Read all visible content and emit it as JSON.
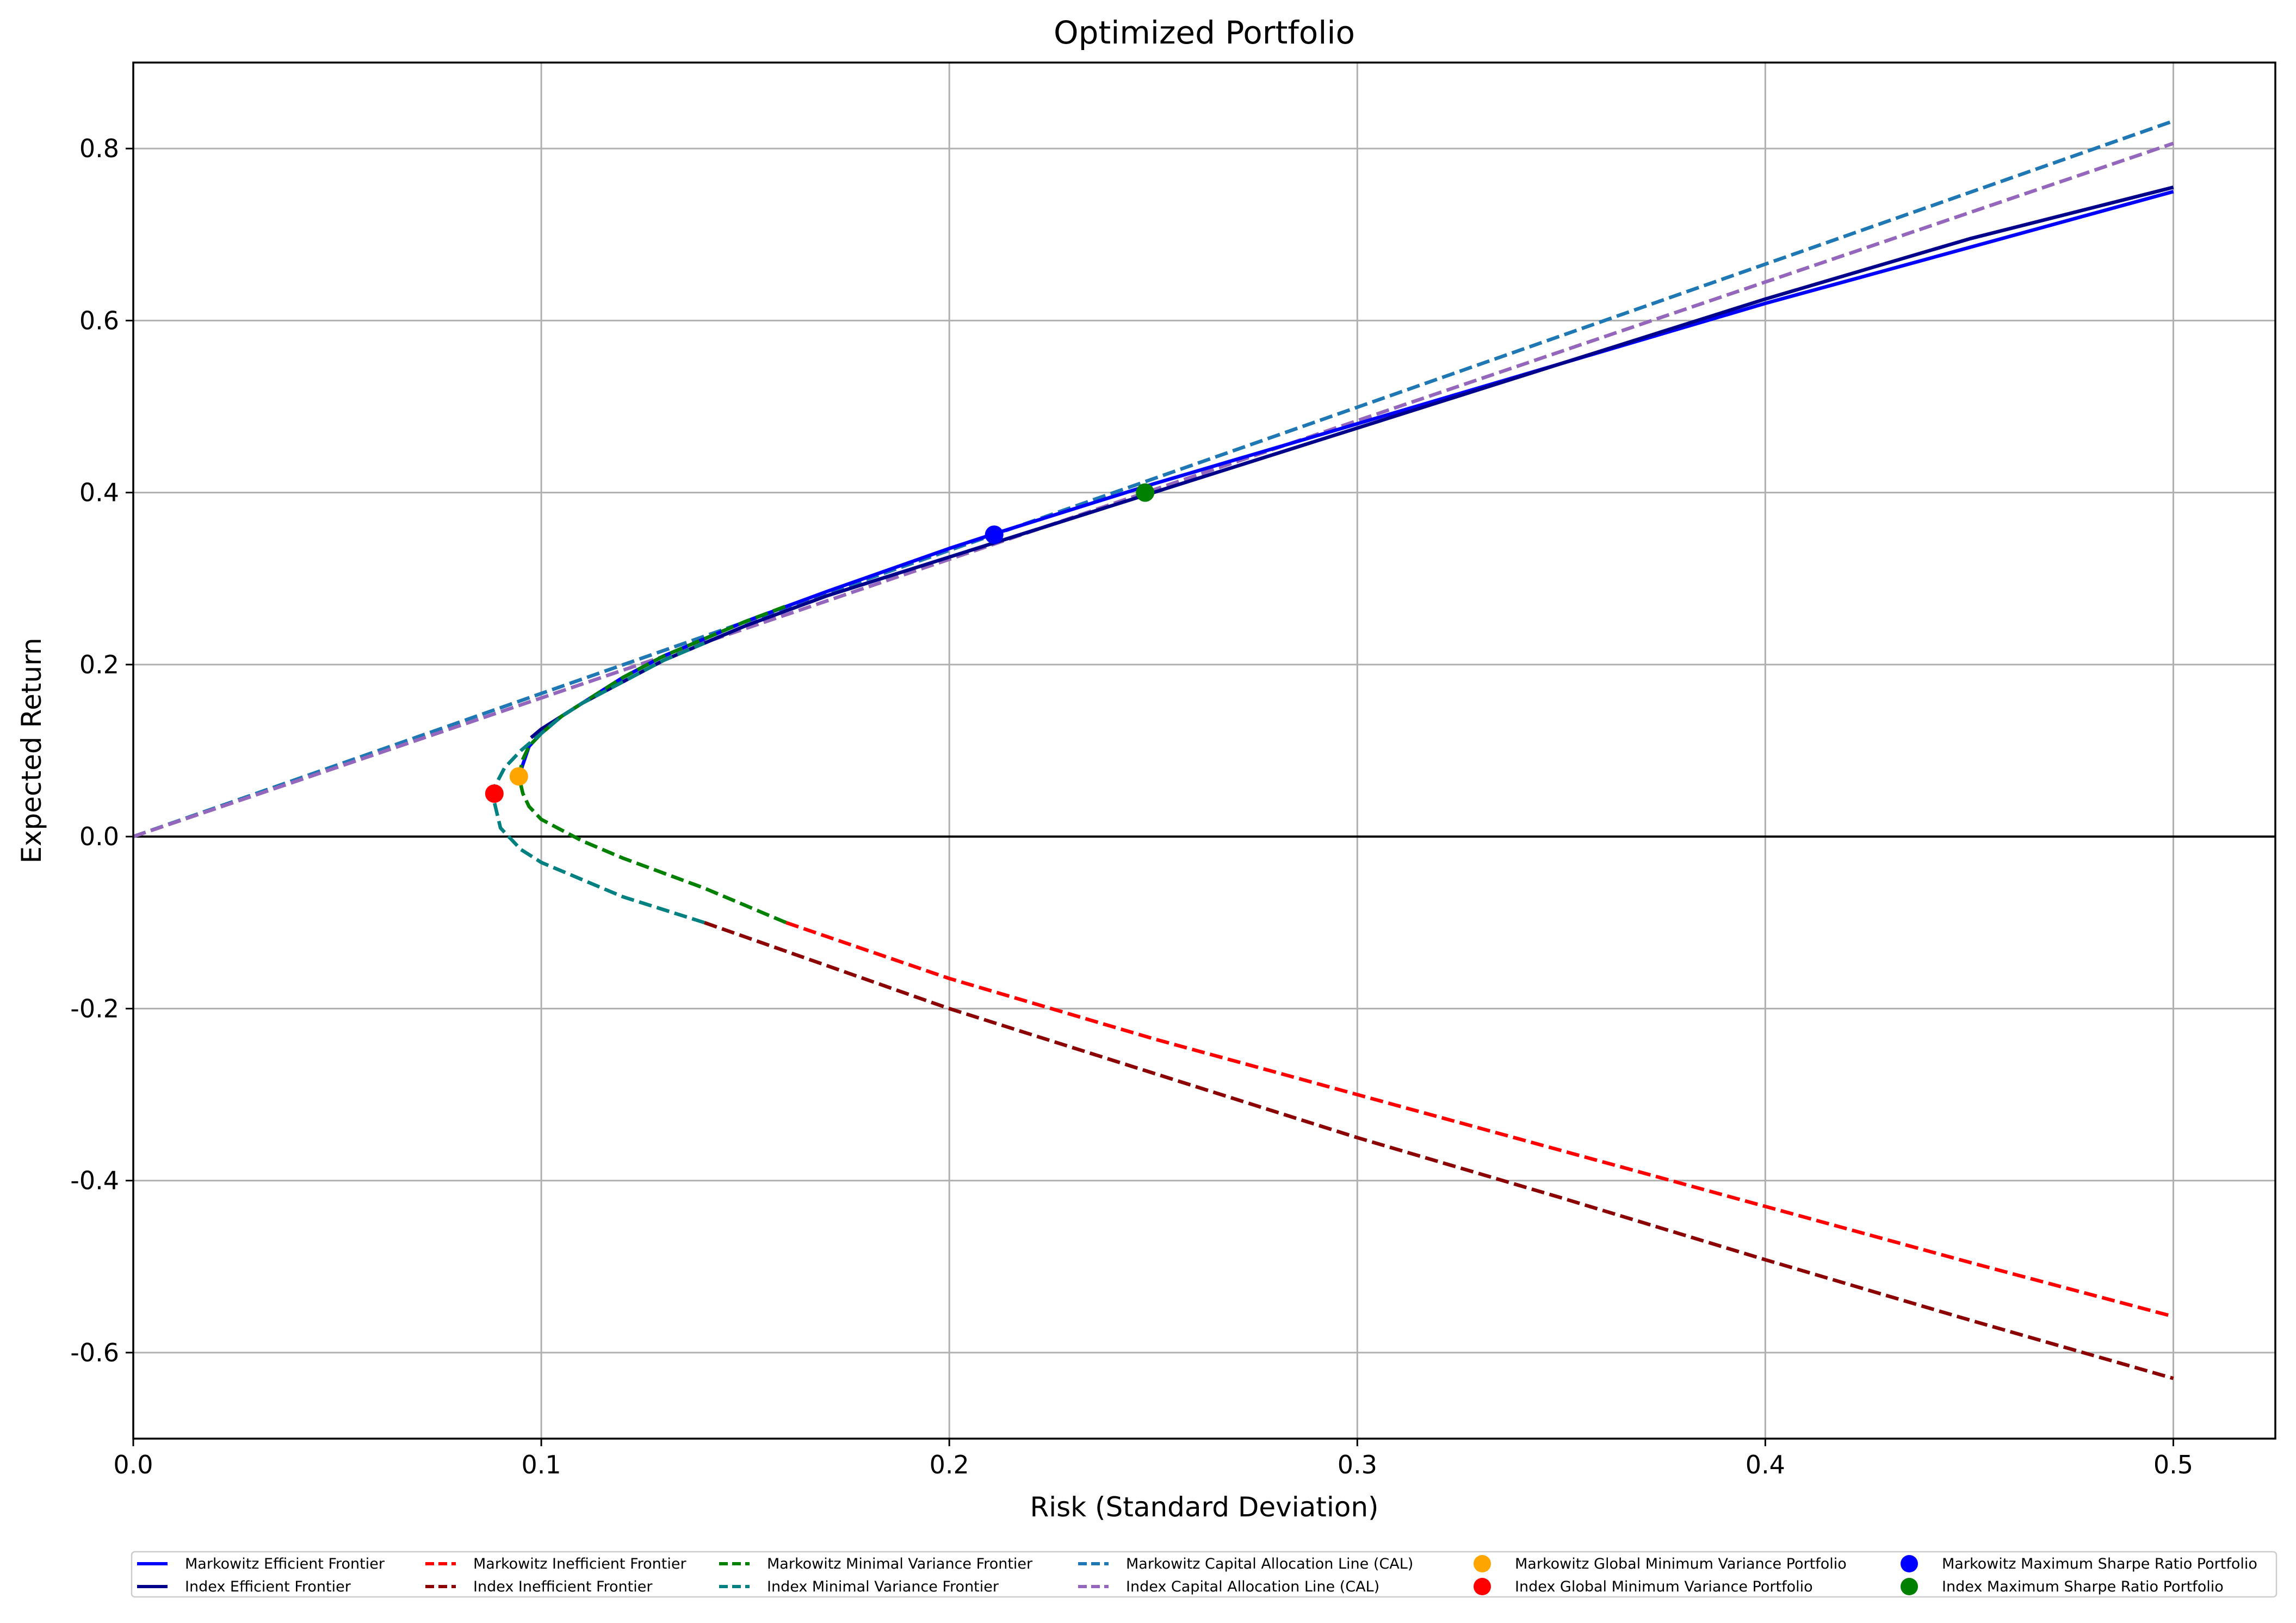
{
  "chart_data": {
    "type": "line",
    "title": "Optimized Portfolio",
    "xlabel": "Risk (Standard Deviation)",
    "ylabel": "Expected Return",
    "xlim": [
      0,
      0.525
    ],
    "ylim": [
      -0.7,
      0.9
    ],
    "xticks": [
      {
        "value": 0.0,
        "label": "0.0"
      },
      {
        "value": 0.1,
        "label": "0.1"
      },
      {
        "value": 0.2,
        "label": "0.2"
      },
      {
        "value": 0.3,
        "label": "0.3"
      },
      {
        "value": 0.4,
        "label": "0.4"
      },
      {
        "value": 0.5,
        "label": "0.5"
      }
    ],
    "yticks": [
      {
        "value": -0.6,
        "label": "-0.6"
      },
      {
        "value": -0.4,
        "label": "-0.4"
      },
      {
        "value": -0.2,
        "label": "-0.2"
      },
      {
        "value": 0.0,
        "label": "0.0"
      },
      {
        "value": 0.2,
        "label": "0.2"
      },
      {
        "value": 0.4,
        "label": "0.4"
      },
      {
        "value": 0.6,
        "label": "0.6"
      },
      {
        "value": 0.8,
        "label": "0.8"
      }
    ],
    "grid": true,
    "zero_line": true,
    "legend_position": "below plot",
    "legend_columns": 6,
    "series": [
      {
        "name": "Markowitz Efficient Frontier",
        "kind": "line",
        "style": "solid",
        "color": "#0000ff",
        "x": [
          0.0945,
          0.097,
          0.1,
          0.105,
          0.11,
          0.12,
          0.13,
          0.15,
          0.17,
          0.2,
          0.211,
          0.25,
          0.3,
          0.35,
          0.4,
          0.45,
          0.5
        ],
        "y": [
          0.07,
          0.105,
          0.12,
          0.14,
          0.155,
          0.185,
          0.21,
          0.25,
          0.285,
          0.335,
          0.352,
          0.41,
          0.48,
          0.55,
          0.62,
          0.685,
          0.75
        ]
      },
      {
        "name": "Index Efficient Frontier",
        "kind": "line",
        "style": "solid",
        "color": "#00008b",
        "x": [
          0.0975,
          0.1,
          0.105,
          0.11,
          0.12,
          0.13,
          0.15,
          0.17,
          0.2,
          0.25,
          0.3,
          0.35,
          0.4,
          0.45,
          0.5
        ],
        "y": [
          0.115,
          0.125,
          0.14,
          0.155,
          0.18,
          0.205,
          0.245,
          0.28,
          0.325,
          0.4,
          0.475,
          0.55,
          0.625,
          0.695,
          0.755
        ]
      },
      {
        "name": "Markowitz Inefficient Frontier",
        "kind": "line",
        "style": "dashed",
        "color": "#ff0000",
        "x": [
          0.16,
          0.2,
          0.25,
          0.3,
          0.35,
          0.4,
          0.45,
          0.5
        ],
        "y": [
          -0.1,
          -0.165,
          -0.235,
          -0.3,
          -0.365,
          -0.43,
          -0.495,
          -0.558
        ]
      },
      {
        "name": "Index Inefficient Frontier",
        "kind": "line",
        "style": "dashed",
        "color": "#8b0000",
        "x": [
          0.14,
          0.2,
          0.25,
          0.3,
          0.35,
          0.4,
          0.45,
          0.5
        ],
        "y": [
          -0.1,
          -0.2,
          -0.275,
          -0.35,
          -0.42,
          -0.492,
          -0.562,
          -0.63
        ]
      },
      {
        "name": "Markowitz Minimal Variance Frontier",
        "kind": "line",
        "style": "dashed",
        "color": "#008000",
        "x": [
          0.16,
          0.14,
          0.12,
          0.11,
          0.1,
          0.097,
          0.0955,
          0.0945,
          0.0955,
          0.097,
          0.1,
          0.105,
          0.11,
          0.12,
          0.13,
          0.15,
          0.16
        ],
        "y": [
          -0.1,
          -0.06,
          -0.025,
          -0.005,
          0.02,
          0.035,
          0.05,
          0.07,
          0.09,
          0.105,
          0.12,
          0.14,
          0.155,
          0.185,
          0.21,
          0.25,
          0.268
        ]
      },
      {
        "name": "Index Minimal Variance Frontier",
        "kind": "line",
        "style": "dashed",
        "color": "#008080",
        "x": [
          0.14,
          0.12,
          0.11,
          0.1,
          0.095,
          0.09,
          0.0885,
          0.0888,
          0.091,
          0.095,
          0.1,
          0.105,
          0.11,
          0.12,
          0.13,
          0.14
        ],
        "y": [
          -0.1,
          -0.07,
          -0.05,
          -0.03,
          -0.015,
          0.01,
          0.04,
          0.06,
          0.08,
          0.1,
          0.12,
          0.14,
          0.155,
          0.18,
          0.205,
          0.225
        ]
      },
      {
        "name": "Markowitz Capital Allocation Line (CAL)",
        "kind": "line",
        "style": "dashed",
        "color": "#1f77b4",
        "x": [
          0,
          0.5
        ],
        "y": [
          0,
          0.832
        ]
      },
      {
        "name": "Index Capital Allocation Line (CAL)",
        "kind": "line",
        "style": "dashed",
        "color": "#9467bd",
        "x": [
          0,
          0.5
        ],
        "y": [
          0,
          0.806
        ]
      },
      {
        "name": "Markowitz Global Minimum Variance Portfolio",
        "kind": "point",
        "color": "#ffa500",
        "x": [
          0.0945
        ],
        "y": [
          0.07
        ]
      },
      {
        "name": "Index Global Minimum Variance Portfolio",
        "kind": "point",
        "color": "#ff0000",
        "x": [
          0.0885
        ],
        "y": [
          0.05
        ]
      },
      {
        "name": "Markowitz Maximum Sharpe Ratio Portfolio",
        "kind": "point",
        "color": "#0000ff",
        "x": [
          0.211
        ],
        "y": [
          0.351
        ]
      },
      {
        "name": "Index Maximum Sharpe Ratio Portfolio",
        "kind": "point",
        "color": "#008000",
        "x": [
          0.248
        ],
        "y": [
          0.4
        ]
      }
    ]
  }
}
